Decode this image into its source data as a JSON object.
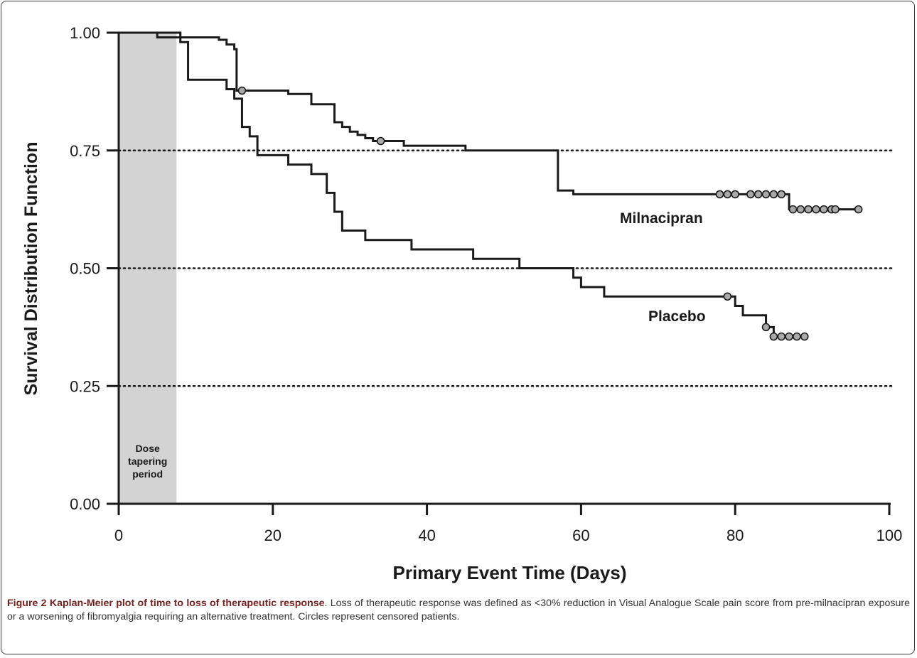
{
  "chart_data": {
    "type": "line",
    "xlabel": "Primary Event Time (Days)",
    "ylabel": "Survival Distribution Function",
    "xlim": [
      0,
      100
    ],
    "ylim": [
      0,
      1
    ],
    "x_ticks": [
      "0",
      "20",
      "40",
      "60",
      "80",
      "100"
    ],
    "y_ticks": [
      "0.00",
      "0.25",
      "0.50",
      "0.75",
      "1.00"
    ],
    "gridlines_y": [
      0.25,
      0.5,
      0.75
    ],
    "shaded_region": {
      "x": [
        0,
        7.5
      ],
      "label": [
        "Dose",
        "tapering",
        "period"
      ]
    },
    "series": [
      {
        "name": "Milnacipran",
        "steps": [
          [
            0,
            1.0
          ],
          [
            8,
            0.99
          ],
          [
            13,
            0.985
          ],
          [
            14,
            0.975
          ],
          [
            15,
            0.965
          ],
          [
            15.3,
            0.877
          ],
          [
            22,
            0.87
          ],
          [
            25,
            0.848
          ],
          [
            28,
            0.81
          ],
          [
            29,
            0.8
          ],
          [
            30,
            0.79
          ],
          [
            31,
            0.783
          ],
          [
            32,
            0.776
          ],
          [
            33,
            0.77
          ],
          [
            37,
            0.76
          ],
          [
            45,
            0.75
          ],
          [
            57,
            0.665
          ],
          [
            59,
            0.657
          ],
          [
            87,
            0.625
          ],
          [
            96,
            0.625
          ]
        ],
        "censored": [
          [
            16,
            0.877
          ],
          [
            34,
            0.77
          ],
          [
            78,
            0.657
          ],
          [
            79,
            0.657
          ],
          [
            80,
            0.657
          ],
          [
            82,
            0.657
          ],
          [
            83,
            0.657
          ],
          [
            84,
            0.657
          ],
          [
            85,
            0.657
          ],
          [
            86,
            0.657
          ],
          [
            87.5,
            0.625
          ],
          [
            88.5,
            0.625
          ],
          [
            89.5,
            0.625
          ],
          [
            90.5,
            0.625
          ],
          [
            91.5,
            0.625
          ],
          [
            92.5,
            0.625
          ],
          [
            93,
            0.625
          ],
          [
            96,
            0.625
          ]
        ]
      },
      {
        "name": "Placebo",
        "steps": [
          [
            0,
            1.0
          ],
          [
            5,
            0.99
          ],
          [
            8,
            0.98
          ],
          [
            9,
            0.9
          ],
          [
            14,
            0.88
          ],
          [
            15,
            0.86
          ],
          [
            16,
            0.8
          ],
          [
            17,
            0.78
          ],
          [
            18,
            0.74
          ],
          [
            22,
            0.72
          ],
          [
            25,
            0.7
          ],
          [
            27,
            0.66
          ],
          [
            28,
            0.62
          ],
          [
            29,
            0.58
          ],
          [
            32,
            0.56
          ],
          [
            38,
            0.54
          ],
          [
            46,
            0.52
          ],
          [
            52,
            0.5
          ],
          [
            59,
            0.48
          ],
          [
            60,
            0.46
          ],
          [
            63,
            0.44
          ],
          [
            80,
            0.42
          ],
          [
            81,
            0.4
          ],
          [
            84,
            0.375
          ],
          [
            85,
            0.355
          ],
          [
            89,
            0.355
          ]
        ],
        "censored": [
          [
            79,
            0.44
          ],
          [
            84,
            0.375
          ],
          [
            85,
            0.355
          ],
          [
            86,
            0.355
          ],
          [
            87,
            0.355
          ],
          [
            88,
            0.355
          ],
          [
            89,
            0.355
          ]
        ]
      }
    ],
    "line_color": "#1a1a1a",
    "marker_color": "#a9a9a9",
    "shade_color": "#d3d3d3"
  },
  "series_labels": {
    "milnacipran": "Milnacipran",
    "placebo": "Placebo"
  },
  "caption": {
    "title": "Figure 2 Kaplan-Meier plot of time to loss of therapeutic response",
    "text": ". Loss of therapeutic response was defined as <30% reduction in Visual Analogue Scale pain score from pre-milnacipran exposure or a worsening of fibromyalgia requiring an alternative treatment. Circles represent censored patients."
  }
}
